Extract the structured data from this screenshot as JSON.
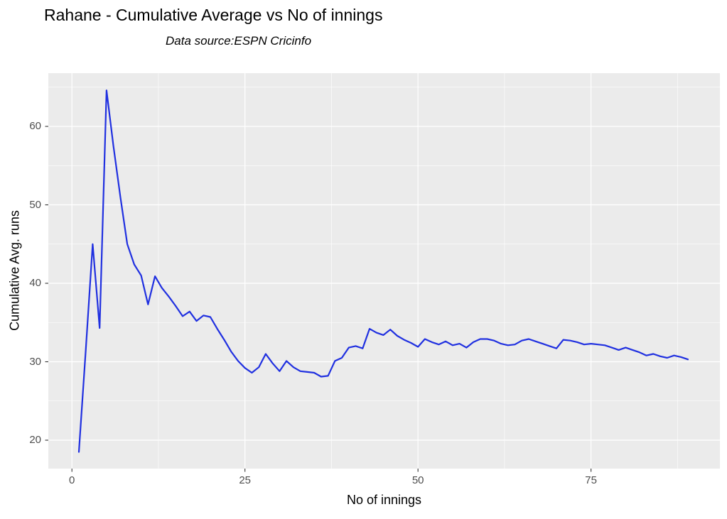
{
  "chart_data": {
    "type": "line",
    "title": "Rahane - Cumulative Average vs No of innings",
    "subtitle": "Data source:ESPN Cricinfo",
    "xlabel": "No of innings",
    "ylabel": "Cumulative Avg. runs",
    "legend": "none",
    "grid": true,
    "xlim": [
      -3.41,
      93.62
    ],
    "ylim": [
      16.38,
      66.79
    ],
    "x_ticks": {
      "labels": [
        "0",
        "25",
        "50",
        "75"
      ],
      "values": [
        0,
        25,
        50,
        75
      ]
    },
    "y_ticks": {
      "labels": [
        "20",
        "30",
        "40",
        "50",
        "60"
      ],
      "values": [
        20,
        30,
        40,
        50,
        60
      ]
    },
    "x_minor": [
      12.5,
      37.5,
      62.5,
      87.5
    ],
    "y_minor": [
      25,
      35,
      45,
      55,
      65
    ],
    "colors": {
      "line": "#2030E0",
      "panel_bg": "#EBEBEB",
      "grid": "#FFFFFF",
      "tick_label": "#4D4D4D",
      "tick_mark": "#333333",
      "text": "#000000"
    },
    "series": [
      {
        "name": "cumulative-average",
        "x": [
          1,
          2,
          3,
          4,
          5,
          6,
          7,
          8,
          9,
          10,
          11,
          12,
          13,
          14,
          15,
          16,
          17,
          18,
          19,
          20,
          21,
          22,
          23,
          24,
          25,
          26,
          27,
          28,
          29,
          30,
          31,
          32,
          33,
          34,
          35,
          36,
          37,
          38,
          39,
          40,
          41,
          42,
          43,
          44,
          45,
          46,
          47,
          48,
          49,
          50,
          51,
          52,
          53,
          54,
          55,
          56,
          57,
          58,
          59,
          60,
          61,
          62,
          63,
          64,
          65,
          66,
          67,
          68,
          69,
          70,
          71,
          72,
          73,
          74,
          75,
          76,
          77,
          78,
          79,
          80,
          81,
          82,
          83,
          84,
          85,
          86,
          87,
          88,
          89
        ],
        "y": [
          18.5,
          31.5,
          45.0,
          34.3,
          64.6,
          57.5,
          51.0,
          45.0,
          42.4,
          41.0,
          37.3,
          40.9,
          39.4,
          38.3,
          37.1,
          35.8,
          36.4,
          35.2,
          35.9,
          35.7,
          34.2,
          32.8,
          31.3,
          30.1,
          29.2,
          28.6,
          29.3,
          31.0,
          29.8,
          28.8,
          30.1,
          29.3,
          28.8,
          28.7,
          28.6,
          28.1,
          28.2,
          30.1,
          30.5,
          31.8,
          32.0,
          31.7,
          34.2,
          33.7,
          33.4,
          34.1,
          33.3,
          32.8,
          32.4,
          31.9,
          32.9,
          32.5,
          32.2,
          32.6,
          32.1,
          32.3,
          31.8,
          32.5,
          32.9,
          32.9,
          32.7,
          32.3,
          32.1,
          32.2,
          32.7,
          32.9,
          32.6,
          32.3,
          32.0,
          31.7,
          32.8,
          32.7,
          32.5,
          32.2,
          32.3,
          32.2,
          32.1,
          31.8,
          31.5,
          31.8,
          31.5,
          31.2,
          30.8,
          31.0,
          30.7,
          30.5,
          30.8,
          30.6,
          30.3
        ]
      }
    ]
  }
}
